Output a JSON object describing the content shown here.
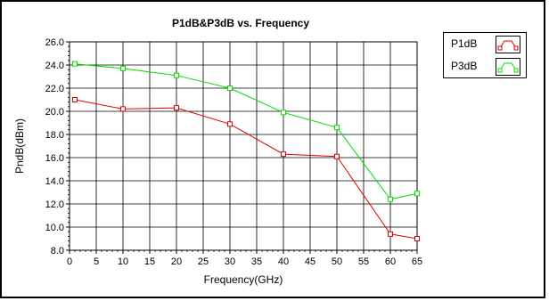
{
  "chart_data": {
    "type": "line",
    "title": "P1dB&P3dB vs. Frequency",
    "xlabel": "Frequency(GHz)",
    "ylabel": "PndB(dBm)",
    "xlim": [
      0,
      65
    ],
    "ylim": [
      8.0,
      26.0
    ],
    "xticks": [
      0,
      5,
      10,
      15,
      20,
      25,
      30,
      35,
      40,
      45,
      50,
      55,
      60,
      65
    ],
    "xtick_labels": [
      "0",
      "5",
      "10",
      "15",
      "20",
      "25",
      "30",
      "35",
      "40",
      "45",
      "50",
      "55",
      "60",
      "65"
    ],
    "yticks": [
      8.0,
      10.0,
      12.0,
      14.0,
      16.0,
      18.0,
      20.0,
      22.0,
      24.0,
      26.0
    ],
    "ytick_labels": [
      "8.0",
      "10.0",
      "12.0",
      "14.0",
      "16.0",
      "18.0",
      "20.0",
      "22.0",
      "24.0",
      "26.0"
    ],
    "grid": true,
    "legend_position": "top-right, outside plot",
    "series": [
      {
        "name": "P1dB",
        "color": "#e00000",
        "x": [
          1,
          10,
          20,
          30,
          40,
          50,
          60,
          65
        ],
        "y": [
          21.0,
          20.2,
          20.3,
          18.9,
          16.3,
          16.1,
          9.4,
          9.0
        ]
      },
      {
        "name": "P3dB",
        "color": "#00e000",
        "x": [
          1,
          10,
          20,
          30,
          40,
          50,
          60,
          65
        ],
        "y": [
          24.1,
          23.7,
          23.1,
          22.0,
          19.9,
          18.6,
          12.4,
          12.9
        ]
      }
    ]
  }
}
